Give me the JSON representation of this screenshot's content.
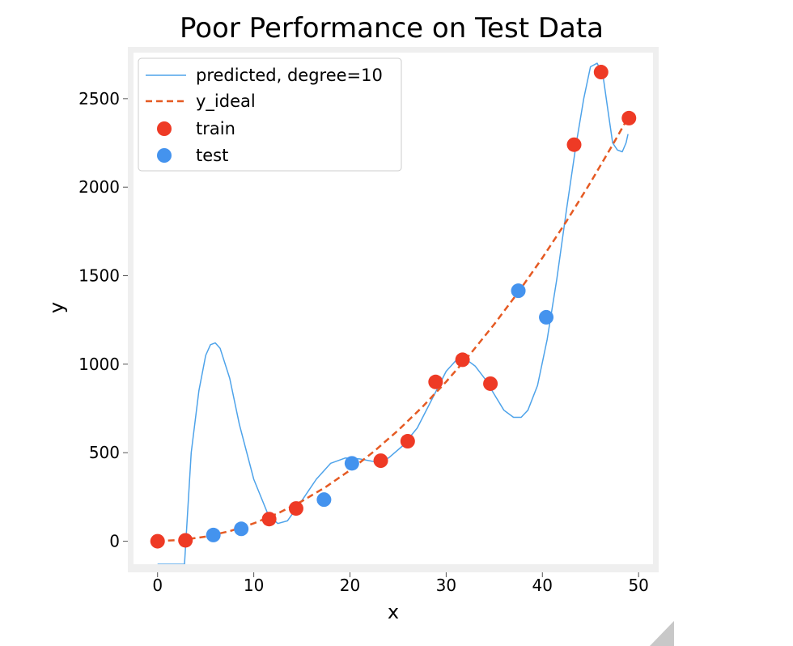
{
  "chart_data": {
    "type": "line",
    "title": "Poor Performance on Test Data",
    "xlabel": "x",
    "ylabel": "y",
    "xlim": [
      -2.5,
      51.5
    ],
    "ylim": [
      -130,
      2760
    ],
    "x_ticks": [
      0,
      10,
      20,
      30,
      40,
      50
    ],
    "y_ticks": [
      0,
      500,
      1000,
      1500,
      2000,
      2500
    ],
    "grid": false,
    "legend_position": "top-left",
    "legend": [
      {
        "label": "predicted, degree=10"
      },
      {
        "label": "y_ideal"
      },
      {
        "label": "train"
      },
      {
        "label": "test"
      }
    ],
    "colors": {
      "predicted": "#4ea3ea",
      "ideal": "#e55a23",
      "train": "#ee3a25",
      "test": "#4493ee",
      "frame": "#efefef"
    },
    "series": [
      {
        "name": "predicted, degree=10",
        "style": "line",
        "x": [
          0,
          2.8,
          3.5,
          4.3,
          5.0,
          5.5,
          6.0,
          6.5,
          7.5,
          8.5,
          10.0,
          11.5,
          12.5,
          13.5,
          15.0,
          16.5,
          18.0,
          19.5,
          21.0,
          22.5,
          24.0,
          25.5,
          27.0,
          28.5,
          30.0,
          31.0,
          32.0,
          33.0,
          34.0,
          35.0,
          36.0,
          37.0,
          37.8,
          38.5,
          39.5,
          40.5,
          41.5,
          42.5,
          43.5,
          44.3,
          45.0,
          45.7,
          46.3,
          46.8,
          47.3,
          47.8,
          48.3,
          48.7,
          48.9
        ],
        "y": [
          -130,
          -130,
          500,
          850,
          1050,
          1110,
          1120,
          1090,
          920,
          660,
          350,
          150,
          100,
          115,
          230,
          350,
          440,
          470,
          465,
          450,
          470,
          540,
          640,
          800,
          960,
          1020,
          1030,
          990,
          920,
          830,
          740,
          700,
          700,
          740,
          880,
          1140,
          1480,
          1870,
          2240,
          2500,
          2680,
          2700,
          2630,
          2440,
          2250,
          2210,
          2200,
          2250,
          2300
        ]
      },
      {
        "name": "y_ideal",
        "style": "dashed",
        "x": [
          0,
          2.5,
          5,
          7.5,
          10,
          12.5,
          15,
          17.5,
          20,
          22.5,
          25,
          27.5,
          30,
          32.5,
          35,
          37.5,
          40,
          42.5,
          45,
          47.5,
          49
        ],
        "y": [
          1,
          7.25,
          26,
          57.25,
          101,
          157.25,
          226,
          307.25,
          401,
          507.25,
          626,
          757.25,
          901,
          1057.25,
          1226,
          1407.25,
          1601,
          1807.25,
          2026,
          2257.25,
          2402
        ]
      },
      {
        "name": "train",
        "style": "scatter",
        "x": [
          0,
          2.9,
          11.6,
          14.4,
          23.2,
          26.0,
          28.9,
          31.7,
          34.6,
          43.3,
          46.1,
          49.0
        ],
        "y": [
          0,
          5,
          125,
          185,
          455,
          565,
          900,
          1025,
          890,
          2240,
          2650,
          2390
        ]
      },
      {
        "name": "test",
        "style": "scatter",
        "x": [
          5.8,
          8.7,
          17.3,
          20.2,
          37.5,
          40.4
        ],
        "y": [
          35,
          70,
          235,
          440,
          1415,
          1265
        ]
      }
    ]
  }
}
